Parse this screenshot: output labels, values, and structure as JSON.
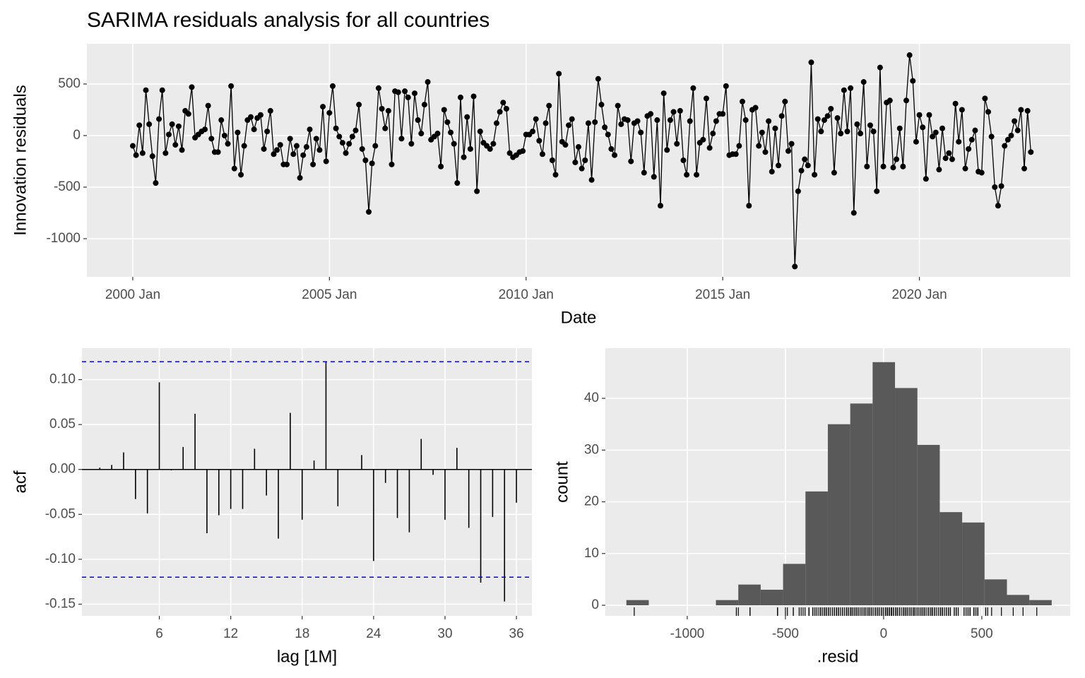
{
  "chart_data": [
    {
      "type": "line",
      "title": "SARIMA residuals analysis for all countries",
      "x_label": "Date",
      "y_label": "Innovation residuals",
      "color": "#000000",
      "x": [
        "2000-01",
        "2000-02",
        "2000-03",
        "2000-04",
        "2000-05",
        "2000-06",
        "2000-07",
        "2000-08",
        "2000-09",
        "2000-10",
        "2000-11",
        "2000-12",
        "2001-01",
        "2001-02",
        "2001-03",
        "2001-04",
        "2001-05",
        "2001-06",
        "2001-07",
        "2001-08",
        "2001-09",
        "2001-10",
        "2001-11",
        "2001-12",
        "2002-01",
        "2002-02",
        "2002-03",
        "2002-04",
        "2002-05",
        "2002-06",
        "2002-07",
        "2002-08",
        "2002-09",
        "2002-10",
        "2002-11",
        "2002-12",
        "2003-01",
        "2003-02",
        "2003-03",
        "2003-04",
        "2003-05",
        "2003-06",
        "2003-07",
        "2003-08",
        "2003-09",
        "2003-10",
        "2003-11",
        "2003-12",
        "2004-01",
        "2004-02",
        "2004-03",
        "2004-04",
        "2004-05",
        "2004-06",
        "2004-07",
        "2004-08",
        "2004-09",
        "2004-10",
        "2004-11",
        "2004-12",
        "2005-01",
        "2005-02",
        "2005-03",
        "2005-04",
        "2005-05",
        "2005-06",
        "2005-07",
        "2005-08",
        "2005-09",
        "2005-10",
        "2005-11",
        "2005-12",
        "2006-01",
        "2006-02",
        "2006-03",
        "2006-04",
        "2006-05",
        "2006-06",
        "2006-07",
        "2006-08",
        "2006-09",
        "2006-10",
        "2006-11",
        "2006-12",
        "2007-01",
        "2007-02",
        "2007-03",
        "2007-04",
        "2007-05",
        "2007-06",
        "2007-07",
        "2007-08",
        "2007-09",
        "2007-10",
        "2007-11",
        "2007-12",
        "2008-01",
        "2008-02",
        "2008-03",
        "2008-04",
        "2008-05",
        "2008-06",
        "2008-07",
        "2008-08",
        "2008-09",
        "2008-10",
        "2008-11",
        "2008-12",
        "2009-01",
        "2009-02",
        "2009-03",
        "2009-04",
        "2009-05",
        "2009-06",
        "2009-07",
        "2009-08",
        "2009-09",
        "2009-10",
        "2009-11",
        "2009-12",
        "2010-01",
        "2010-02",
        "2010-03",
        "2010-04",
        "2010-05",
        "2010-06",
        "2010-07",
        "2010-08",
        "2010-09",
        "2010-10",
        "2010-11",
        "2010-12",
        "2011-01",
        "2011-02",
        "2011-03",
        "2011-04",
        "2011-05",
        "2011-06",
        "2011-07",
        "2011-08",
        "2011-09",
        "2011-10",
        "2011-11",
        "2011-12",
        "2012-01",
        "2012-02",
        "2012-03",
        "2012-04",
        "2012-05",
        "2012-06",
        "2012-07",
        "2012-08",
        "2012-09",
        "2012-10",
        "2012-11",
        "2012-12",
        "2013-01",
        "2013-02",
        "2013-03",
        "2013-04",
        "2013-05",
        "2013-06",
        "2013-07",
        "2013-08",
        "2013-09",
        "2013-10",
        "2013-11",
        "2013-12",
        "2014-01",
        "2014-02",
        "2014-03",
        "2014-04",
        "2014-05",
        "2014-06",
        "2014-07",
        "2014-08",
        "2014-09",
        "2014-10",
        "2014-11",
        "2014-12",
        "2015-01",
        "2015-02",
        "2015-03",
        "2015-04",
        "2015-05",
        "2015-06",
        "2015-07",
        "2015-08",
        "2015-09",
        "2015-10",
        "2015-11",
        "2015-12",
        "2016-01",
        "2016-02",
        "2016-03",
        "2016-04",
        "2016-05",
        "2016-06",
        "2016-07",
        "2016-08",
        "2016-09",
        "2016-10",
        "2016-11",
        "2016-12",
        "2017-01",
        "2017-02",
        "2017-03",
        "2017-04",
        "2017-05",
        "2017-06",
        "2017-07",
        "2017-08",
        "2017-09",
        "2017-10",
        "2017-11",
        "2017-12",
        "2018-01",
        "2018-02",
        "2018-03",
        "2018-04",
        "2018-05",
        "2018-06",
        "2018-07",
        "2018-08",
        "2018-09",
        "2018-10",
        "2018-11",
        "2018-12",
        "2019-01",
        "2019-02",
        "2019-03",
        "2019-04",
        "2019-05",
        "2019-06",
        "2019-07",
        "2019-08",
        "2019-09",
        "2019-10",
        "2019-11",
        "2019-12",
        "2020-01",
        "2020-02",
        "2020-03",
        "2020-04",
        "2020-05",
        "2020-06",
        "2020-07",
        "2020-08",
        "2020-09",
        "2020-10",
        "2020-11",
        "2020-12",
        "2021-01",
        "2021-02",
        "2021-03",
        "2021-04",
        "2021-05",
        "2021-06",
        "2021-07",
        "2021-08",
        "2021-09",
        "2021-10",
        "2021-11",
        "2021-12",
        "2022-01",
        "2022-02",
        "2022-03",
        "2022-04",
        "2022-05",
        "2022-06",
        "2022-07",
        "2022-08",
        "2022-09",
        "2022-10",
        "2022-11"
      ],
      "values": [
        -100,
        -190,
        100,
        -170,
        440,
        110,
        -200,
        -460,
        160,
        440,
        -170,
        10,
        110,
        -90,
        90,
        -140,
        240,
        210,
        470,
        -20,
        10,
        40,
        60,
        290,
        -30,
        -160,
        -160,
        150,
        0,
        -80,
        480,
        -320,
        30,
        -380,
        -100,
        150,
        180,
        60,
        170,
        200,
        -130,
        40,
        240,
        -180,
        -140,
        -90,
        -280,
        -280,
        -30,
        -180,
        -100,
        -410,
        -190,
        -110,
        60,
        -280,
        -30,
        -140,
        280,
        -250,
        220,
        480,
        70,
        -10,
        -70,
        -170,
        -80,
        -10,
        50,
        300,
        -130,
        -240,
        -740,
        -270,
        -100,
        460,
        260,
        70,
        240,
        -280,
        430,
        420,
        -30,
        430,
        370,
        -80,
        410,
        150,
        20,
        300,
        520,
        -40,
        -10,
        20,
        -300,
        250,
        130,
        30,
        -80,
        -460,
        370,
        -210,
        180,
        -130,
        380,
        -540,
        40,
        -70,
        -100,
        -130,
        -80,
        120,
        230,
        320,
        260,
        -170,
        -210,
        -190,
        -160,
        -150,
        10,
        10,
        40,
        160,
        -50,
        -180,
        120,
        290,
        -240,
        -380,
        600,
        -60,
        -90,
        100,
        160,
        -260,
        -110,
        -320,
        -240,
        120,
        -430,
        130,
        550,
        300,
        80,
        10,
        -130,
        -190,
        290,
        110,
        160,
        150,
        -250,
        120,
        140,
        30,
        -360,
        190,
        210,
        -400,
        150,
        -680,
        410,
        -140,
        150,
        230,
        -80,
        240,
        -240,
        -380,
        140,
        460,
        -380,
        -70,
        -40,
        360,
        -120,
        20,
        140,
        210,
        210,
        480,
        -190,
        -180,
        -180,
        -100,
        330,
        150,
        -680,
        250,
        270,
        -100,
        30,
        -160,
        140,
        -350,
        70,
        -290,
        190,
        330,
        -150,
        -80,
        -1270,
        -540,
        -340,
        -230,
        -290,
        710,
        -380,
        160,
        40,
        150,
        190,
        260,
        -360,
        170,
        20,
        440,
        40,
        460,
        -750,
        110,
        20,
        520,
        -300,
        100,
        40,
        -540,
        660,
        -300,
        320,
        340,
        -310,
        -230,
        70,
        -300,
        340,
        780,
        530,
        -60,
        200,
        80,
        -420,
        200,
        -10,
        30,
        -330,
        70,
        -220,
        -170,
        -230,
        310,
        -60,
        250,
        -320,
        -130,
        -40,
        50,
        -350,
        -360,
        360,
        230,
        -10,
        -500,
        -680,
        -490,
        -100,
        -40,
        0,
        140,
        50,
        250,
        -320,
        240,
        -160
      ],
      "xlim": [
        "1998-11",
        "2023-11"
      ],
      "xticks": [
        {
          "value": "2000-01",
          "label": "2000 Jan"
        },
        {
          "value": "2005-01",
          "label": "2005 Jan"
        },
        {
          "value": "2010-01",
          "label": "2010 Jan"
        },
        {
          "value": "2015-01",
          "label": "2015 Jan"
        },
        {
          "value": "2020-01",
          "label": "2020 Jan"
        }
      ],
      "ylim": [
        -1370,
        890
      ],
      "yticks": [
        -1000,
        -500,
        0,
        500
      ],
      "grid": true
    },
    {
      "type": "acf",
      "x_label": "lag [1M]",
      "y_label": "acf",
      "color": "#000000",
      "x": [
        1,
        2,
        3,
        4,
        5,
        6,
        7,
        8,
        9,
        10,
        11,
        12,
        13,
        14,
        15,
        16,
        17,
        18,
        19,
        20,
        21,
        22,
        23,
        24,
        25,
        26,
        27,
        28,
        29,
        30,
        31,
        32,
        33,
        34,
        35,
        36
      ],
      "values": [
        0.002,
        0.005,
        0.019,
        -0.033,
        -0.049,
        0.097,
        -0.001,
        0.025,
        0.062,
        -0.071,
        -0.051,
        -0.044,
        -0.044,
        0.023,
        -0.029,
        -0.077,
        0.063,
        -0.056,
        0.01,
        0.12,
        -0.041,
        0.0,
        0.016,
        -0.102,
        -0.015,
        -0.054,
        -0.07,
        0.034,
        -0.006,
        -0.056,
        0.024,
        -0.065,
        -0.126,
        -0.053,
        -0.147,
        -0.037
      ],
      "ci": [
        -0.12,
        0.12
      ],
      "ci_color": "#0000ff",
      "xlim": [
        -0.5,
        37.3
      ],
      "xticks": [
        6,
        12,
        18,
        24,
        30,
        36
      ],
      "ylim": [
        -0.163,
        0.135
      ],
      "yticks": [
        {
          "value": -0.15,
          "label": "-0.15"
        },
        {
          "value": -0.1,
          "label": "-0.10"
        },
        {
          "value": -0.05,
          "label": "-0.05"
        },
        {
          "value": 0,
          "label": "0.00"
        },
        {
          "value": 0.05,
          "label": "0.05"
        },
        {
          "value": 0.1,
          "label": "0.10"
        }
      ],
      "grid": true
    },
    {
      "type": "histogram",
      "x_label": ".resid",
      "y_label": "count",
      "color": "#595959",
      "bins": [
        -1310,
        -1196,
        -1082,
        -968,
        -854,
        -740,
        -626,
        -512,
        -398,
        -284,
        -170,
        -56,
        58,
        172,
        286,
        400,
        514,
        628,
        742,
        856
      ],
      "values": [
        1,
        0,
        0,
        0,
        1,
        4,
        3,
        8,
        22,
        35,
        39,
        47,
        42,
        31,
        18,
        16,
        5,
        2,
        1
      ],
      "rug": true,
      "xlim": [
        -1417,
        950
      ],
      "xticks": [
        -1000,
        -500,
        0,
        500
      ],
      "ylim": [
        -2.05,
        49.7
      ],
      "yticks": [
        0,
        10,
        20,
        30,
        40
      ],
      "grid": true
    }
  ]
}
